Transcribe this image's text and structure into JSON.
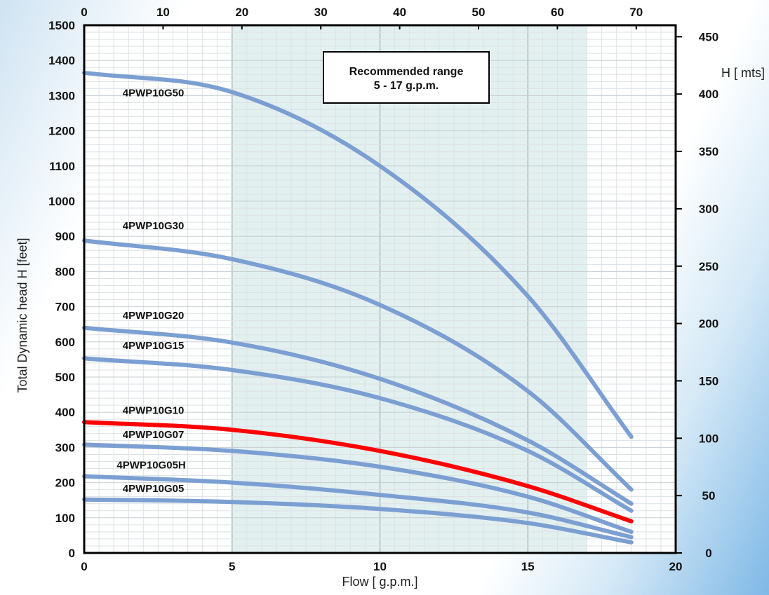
{
  "chart_data": {
    "type": "line",
    "xlabel": "Flow [ g.p.m.]",
    "ylabel": "Total Dynamic head H [feet]",
    "y2label": "H [ mts]",
    "xlim": [
      0,
      20
    ],
    "ylim": [
      0,
      1500
    ],
    "x_ticks": [
      0,
      5,
      10,
      15,
      20
    ],
    "y_ticks": [
      0,
      100,
      200,
      300,
      400,
      500,
      600,
      700,
      800,
      900,
      1000,
      1100,
      1200,
      1300,
      1400,
      1500
    ],
    "top_axis": {
      "lim": [
        0,
        75
      ],
      "ticks": [
        0,
        10,
        20,
        30,
        40,
        50,
        60,
        70
      ]
    },
    "right_axis": {
      "lim": [
        0,
        460
      ],
      "ticks": [
        0,
        50,
        100,
        150,
        200,
        250,
        300,
        350,
        400,
        450
      ]
    },
    "grid": true,
    "recommended_range": {
      "x": [
        5,
        17
      ],
      "line1": "Recommended range",
      "line2": "5 - 17 g.p.m.",
      "color": "#e3f0f0"
    },
    "series": [
      {
        "name": "4PWP10G50",
        "color": "#7b9fd2",
        "x": [
          0,
          5,
          10,
          15,
          18.5
        ],
        "y": [
          1365,
          1310,
          1100,
          730,
          330
        ]
      },
      {
        "name": "4PWP10G30",
        "color": "#7b9fd2",
        "x": [
          0,
          5,
          10,
          15,
          18.5
        ],
        "y": [
          888,
          835,
          705,
          460,
          180
        ]
      },
      {
        "name": "4PWP10G20",
        "color": "#7b9fd2",
        "x": [
          0,
          5,
          10,
          15,
          18.5
        ],
        "y": [
          640,
          598,
          495,
          320,
          140
        ]
      },
      {
        "name": "4PWP10G15",
        "color": "#7b9fd2",
        "x": [
          0,
          5,
          10,
          15,
          18.5
        ],
        "y": [
          553,
          520,
          440,
          290,
          120
        ]
      },
      {
        "name": "4PWP10G10",
        "color": "#ff0000",
        "x": [
          0,
          5,
          10,
          15,
          18.5
        ],
        "y": [
          372,
          350,
          290,
          190,
          90
        ]
      },
      {
        "name": "4PWP10G07",
        "color": "#7b9fd2",
        "x": [
          0,
          5,
          10,
          15,
          18.5
        ],
        "y": [
          308,
          290,
          245,
          160,
          60
        ]
      },
      {
        "name": "4PWP10G05H",
        "color": "#7b9fd2",
        "x": [
          0,
          5,
          10,
          15,
          18.5
        ],
        "y": [
          218,
          200,
          165,
          115,
          45
        ]
      },
      {
        "name": "4PWP10G05",
        "color": "#7b9fd2",
        "x": [
          0,
          5,
          10,
          15,
          18.5
        ],
        "y": [
          152,
          145,
          125,
          85,
          30
        ]
      }
    ],
    "labels": [
      {
        "text": "4PWP10G50",
        "x": 1.3,
        "y": 1298
      },
      {
        "text": "4PWP10G30",
        "x": 1.3,
        "y": 920
      },
      {
        "text": "4PWP10G20",
        "x": 1.3,
        "y": 665
      },
      {
        "text": "4PWP10G15",
        "x": 1.3,
        "y": 580
      },
      {
        "text": "4PWP10G10",
        "x": 1.3,
        "y": 395
      },
      {
        "text": "4PWP10G07",
        "x": 1.3,
        "y": 327
      },
      {
        "text": "4PWP10G05H",
        "x": 1.1,
        "y": 240
      },
      {
        "text": "4PWP10G05",
        "x": 1.3,
        "y": 173
      }
    ]
  }
}
